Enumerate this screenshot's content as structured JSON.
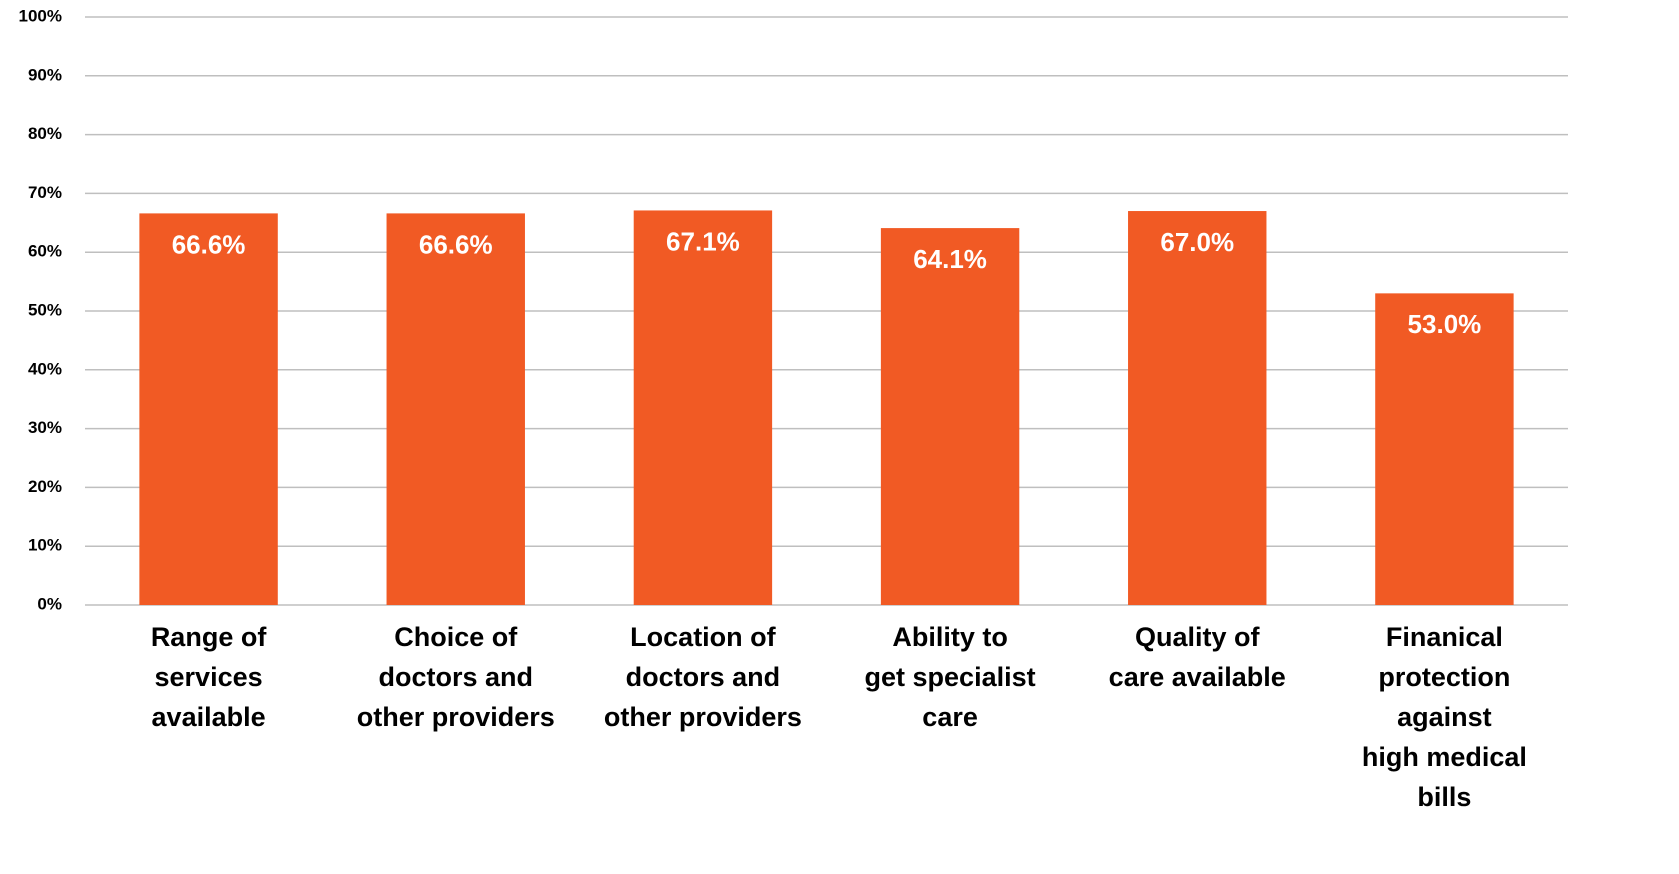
{
  "chart_data": {
    "type": "bar",
    "categories": [
      [
        "Range of",
        "services",
        "available"
      ],
      [
        "Choice of",
        "doctors and",
        "other providers"
      ],
      [
        "Location of",
        "doctors and",
        "other providers"
      ],
      [
        "Ability to",
        "get specialist",
        "care"
      ],
      [
        "Quality of",
        "care available"
      ],
      [
        "Finanical",
        "protection",
        "against",
        "high medical",
        "bills"
      ]
    ],
    "values": [
      66.6,
      66.6,
      67.1,
      64.1,
      67.0,
      53.0
    ],
    "value_labels": [
      "66.6%",
      "66.6%",
      "67.1%",
      "64.1%",
      "67.0%",
      "53.0%"
    ],
    "color": "#f15a24",
    "ylim": [
      0,
      100
    ],
    "yticks": [
      {
        "value": 0,
        "label": "0%"
      },
      {
        "value": 10,
        "label": "10%"
      },
      {
        "value": 20,
        "label": "20%"
      },
      {
        "value": 30,
        "label": "30%"
      },
      {
        "value": 40,
        "label": "40%"
      },
      {
        "value": 50,
        "label": "50%"
      },
      {
        "value": 60,
        "label": "60%"
      },
      {
        "value": 70,
        "label": "70%"
      },
      {
        "value": 80,
        "label": "80%"
      },
      {
        "value": 90,
        "label": "90%"
      },
      {
        "value": 100,
        "label": "100%"
      }
    ],
    "grid": true
  }
}
